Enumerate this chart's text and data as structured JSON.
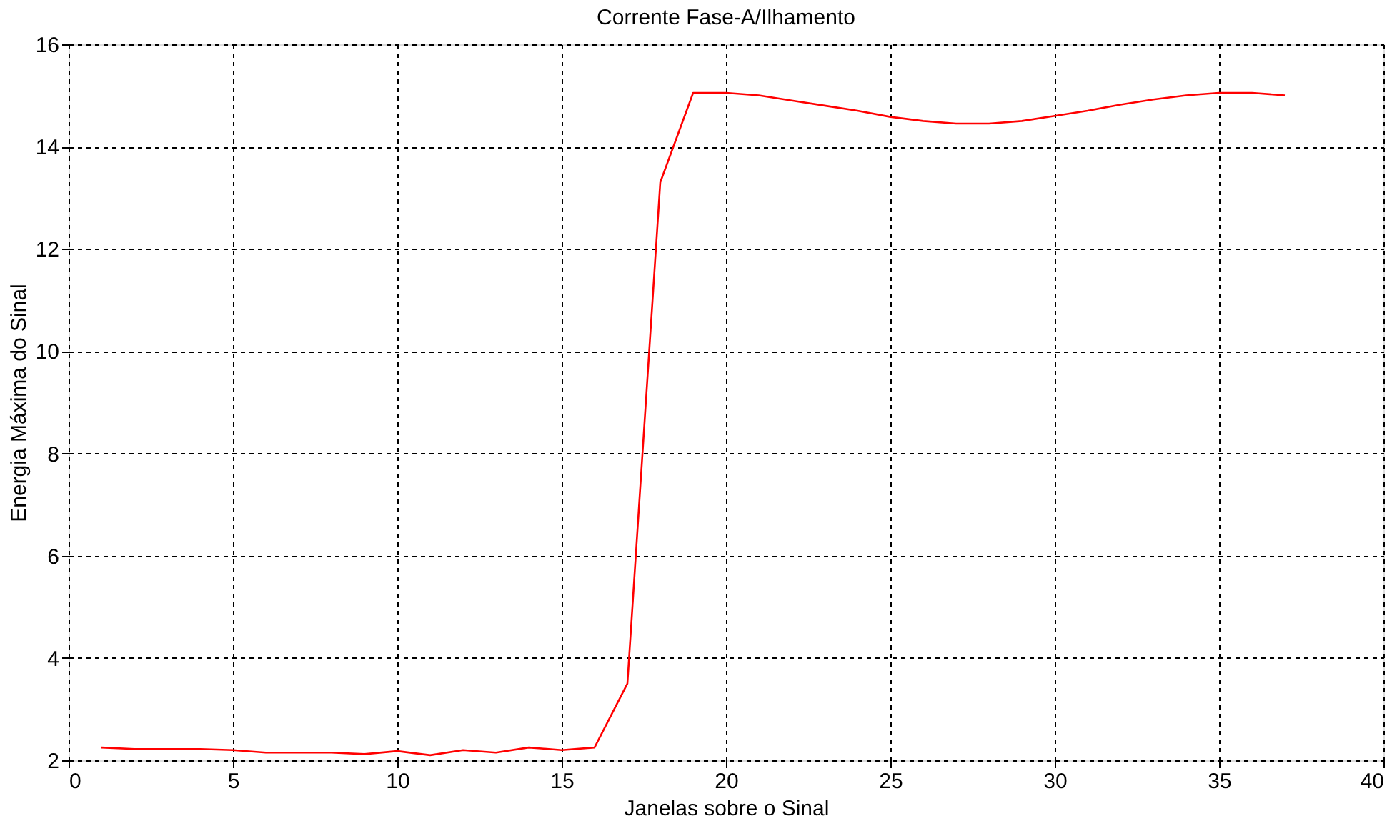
{
  "chart_data": {
    "type": "line",
    "title": "Corrente Fase-A/Ilhamento",
    "xlabel": "Janelas sobre o Sinal",
    "ylabel": "Energia Máxima do Sinal",
    "x": [
      1,
      2,
      3,
      4,
      5,
      6,
      7,
      8,
      9,
      10,
      11,
      12,
      13,
      14,
      15,
      16,
      17,
      18,
      19,
      20,
      21,
      22,
      23,
      24,
      25,
      26,
      27,
      28,
      29,
      30,
      31,
      32,
      33,
      34,
      35,
      36,
      37
    ],
    "series": [
      {
        "color": "#ff0000",
        "values": [
          2.25,
          2.22,
          2.22,
          2.22,
          2.2,
          2.15,
          2.15,
          2.15,
          2.12,
          2.18,
          2.1,
          2.2,
          2.15,
          2.25,
          2.2,
          2.25,
          3.5,
          13.3,
          15.05,
          15.05,
          15.0,
          14.9,
          14.8,
          14.7,
          14.58,
          14.5,
          14.45,
          14.45,
          14.5,
          14.6,
          14.7,
          14.82,
          14.92,
          15.0,
          15.05,
          15.05,
          15.0
        ]
      }
    ],
    "xlim": [
      0,
      40
    ],
    "xticks": [
      0,
      5,
      10,
      15,
      20,
      25,
      30,
      35,
      40
    ],
    "ylim": [
      2,
      16
    ],
    "yticks": [
      2,
      4,
      6,
      8,
      10,
      12,
      14,
      16
    ],
    "grid": true,
    "line_style": "solid",
    "marker": "none"
  }
}
